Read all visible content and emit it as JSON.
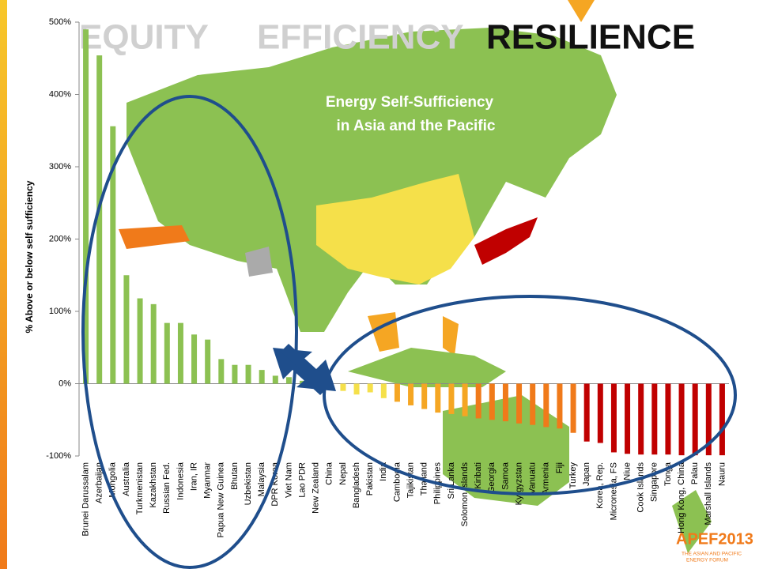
{
  "slide": {
    "headings": [
      "EQUITY",
      "EFFICIENCY",
      "RESILIENCE"
    ],
    "logo": "APEF2013",
    "logo_subtitle": [
      "THE ASIAN AND PACIFIC",
      "ENERGY FORUM"
    ]
  },
  "chart_data": {
    "type": "bar",
    "title": [
      "Energy Self-Sufficiency",
      "in Asia and the Pacific"
    ],
    "y_label": "% Above or below self sufficiency",
    "categories": [
      "Brunei Darussalam",
      "Azerbaijan",
      "Mongolia",
      "Australia",
      "Turkmenistan",
      "Kazakhstan",
      "Russian Fed.",
      "Indonesia",
      "Iran, IR",
      "Myanmar",
      "Papua New Guinea",
      "Bhutan",
      "Uzbekistan",
      "Malaysia",
      "DPR Korea",
      "Viet Nam",
      "Lao PDR",
      "New Zealand",
      "China",
      "Nepal",
      "Bangladesh",
      "Pakistan",
      "India",
      "Cambodia",
      "Tajikistan",
      "Thailand",
      "Philippines",
      "Sri Lanka",
      "Solomon Islands",
      "Kiribati",
      "Georgia",
      "Samoa",
      "Kyrgyzstan",
      "Vanuatu",
      "Armenia",
      "Fiji",
      "Turkey",
      "Japan",
      "Korea, Rep.",
      "Micronesia, FS",
      "Niue",
      "Cook Islands",
      "Singapore",
      "Tonga",
      "Hong Kong, China",
      "Palau",
      "Marshall Islands",
      "Nauru"
    ],
    "values": [
      490,
      454,
      356,
      150,
      118,
      110,
      84,
      84,
      68,
      61,
      34,
      26,
      26,
      19,
      11,
      9,
      4,
      2,
      0,
      -10,
      -15,
      -12,
      -20,
      -25,
      -30,
      -35,
      -40,
      -42,
      -45,
      -48,
      -50,
      -52,
      -55,
      -57,
      -60,
      -62,
      -68,
      -80,
      -82,
      -95,
      -97,
      -98,
      -98,
      -98,
      -99,
      -99,
      -99,
      -99
    ],
    "colors": [
      "#8cc152",
      "#8cc152",
      "#8cc152",
      "#8cc152",
      "#8cc152",
      "#8cc152",
      "#8cc152",
      "#8cc152",
      "#8cc152",
      "#8cc152",
      "#8cc152",
      "#8cc152",
      "#8cc152",
      "#8cc152",
      "#8cc152",
      "#8cc152",
      "#8cc152",
      "#8cc152",
      "#8cc152",
      "#f5e04a",
      "#f5e04a",
      "#f5e04a",
      "#f5e04a",
      "#f5a623",
      "#f5a623",
      "#f5a623",
      "#f5a623",
      "#f5a623",
      "#f5a623",
      "#f07a1a",
      "#f07a1a",
      "#f07a1a",
      "#f07a1a",
      "#f07a1a",
      "#f07a1a",
      "#f07a1a",
      "#f07a1a",
      "#c00000",
      "#c00000",
      "#c00000",
      "#c00000",
      "#c00000",
      "#c00000",
      "#c00000",
      "#c00000",
      "#c00000",
      "#c00000",
      "#c00000"
    ],
    "ylim": [
      -100,
      500
    ],
    "yticks": [
      {
        "value": -100,
        "label": "-100%"
      },
      {
        "value": 0,
        "label": "0%"
      },
      {
        "value": 100,
        "label": "100%"
      },
      {
        "value": 200,
        "label": "200%"
      },
      {
        "value": 300,
        "label": "300%"
      },
      {
        "value": 400,
        "label": "400%"
      },
      {
        "value": 500,
        "label": "500%"
      }
    ]
  }
}
